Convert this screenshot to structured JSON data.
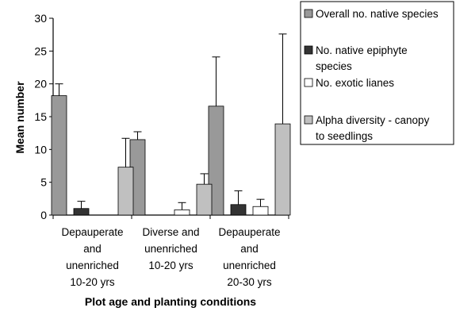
{
  "chart_data": {
    "type": "bar",
    "title": "",
    "xlabel": "Plot age and planting conditions",
    "ylabel": "Mean number",
    "ylim": [
      0,
      30
    ],
    "yticks": [
      0,
      5,
      10,
      15,
      20,
      25,
      30
    ],
    "grid": false,
    "legend_position": "right",
    "categories": [
      [
        "Depauperate",
        "and",
        "unenriched",
        "10-20 yrs"
      ],
      [
        "Diverse and",
        "unenriched",
        "10-20 yrs"
      ],
      [
        "Depauperate",
        "and",
        "unenriched",
        "20-30 yrs"
      ]
    ],
    "series": [
      {
        "name": [
          "Overall no. native species"
        ],
        "color": "#999999",
        "values": [
          18.2,
          11.5,
          16.6
        ],
        "errors": [
          1.8,
          1.2,
          7.5
        ]
      },
      {
        "name": [
          "No. native epiphyte",
          "species"
        ],
        "color": "#333333",
        "values": [
          1.0,
          0.0,
          1.6
        ],
        "errors": [
          1.1,
          0,
          2.1
        ]
      },
      {
        "name": [
          "No. exotic lianes"
        ],
        "color": "#ffffff",
        "values": [
          0.0,
          0.8,
          1.3
        ],
        "errors": [
          0,
          1.1,
          1.1
        ]
      },
      {
        "name": [
          "Alpha diversity - canopy",
          "to seedlings"
        ],
        "color": "#c0c0c0",
        "values": [
          7.3,
          4.7,
          13.9
        ],
        "errors": [
          4.4,
          1.6,
          13.7
        ]
      }
    ]
  }
}
